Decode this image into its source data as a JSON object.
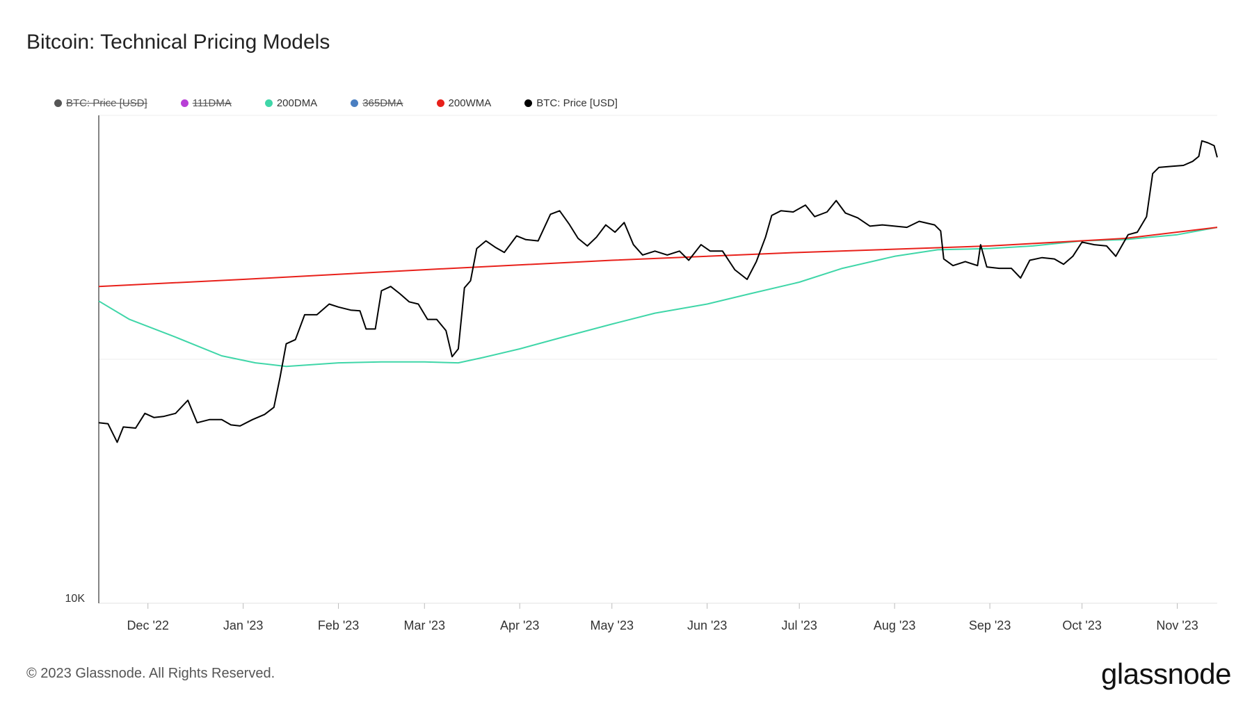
{
  "title": "Bitcoin: Technical Pricing Models",
  "footer": "© 2023 Glassnode. All Rights Reserved.",
  "brand": "glassnode",
  "legend": [
    {
      "label": "BTC: Price [USD]",
      "color": "#555555",
      "disabled": true
    },
    {
      "label": "111DMA",
      "color": "#b83fd6",
      "disabled": true
    },
    {
      "label": "200DMA",
      "color": "#3fd6a8",
      "disabled": false
    },
    {
      "label": "365DMA",
      "color": "#4a7fc1",
      "disabled": true
    },
    {
      "label": "200WMA",
      "color": "#e8201a",
      "disabled": false
    },
    {
      "label": "BTC: Price [USD]",
      "color": "#000000",
      "disabled": false
    }
  ],
  "chart_data": {
    "type": "line",
    "y_scale": "log",
    "y_tick_labels": [
      "10K"
    ],
    "x_tick_labels": [
      "Dec '22",
      "Jan '23",
      "Feb '23",
      "Mar '23",
      "Apr '23",
      "May '23",
      "Jun '23",
      "Jul '23",
      "Aug '23",
      "Sep '23",
      "Oct '23",
      "Nov '23"
    ],
    "x_range": [
      "2022-11-15",
      "2023-11-14"
    ],
    "y_range": [
      10000,
      40000
    ],
    "grid": true,
    "series": [
      {
        "name": "BTC: Price [USD]",
        "color": "#000000",
        "points": [
          [
            "2022-11-15",
            16700
          ],
          [
            "2022-11-18",
            16650
          ],
          [
            "2022-11-21",
            15800
          ],
          [
            "2022-11-23",
            16500
          ],
          [
            "2022-11-27",
            16450
          ],
          [
            "2022-11-30",
            17150
          ],
          [
            "2022-12-03",
            16950
          ],
          [
            "2022-12-06",
            17000
          ],
          [
            "2022-12-10",
            17150
          ],
          [
            "2022-12-14",
            17800
          ],
          [
            "2022-12-17",
            16700
          ],
          [
            "2022-12-21",
            16850
          ],
          [
            "2022-12-25",
            16850
          ],
          [
            "2022-12-28",
            16600
          ],
          [
            "2022-12-31",
            16550
          ],
          [
            "2023-01-04",
            16850
          ],
          [
            "2023-01-08",
            17100
          ],
          [
            "2023-01-11",
            17450
          ],
          [
            "2023-01-13",
            19000
          ],
          [
            "2023-01-15",
            20900
          ],
          [
            "2023-01-18",
            21150
          ],
          [
            "2023-01-21",
            22700
          ],
          [
            "2023-01-25",
            22700
          ],
          [
            "2023-01-29",
            23400
          ],
          [
            "2023-02-01",
            23200
          ],
          [
            "2023-02-05",
            23000
          ],
          [
            "2023-02-08",
            22950
          ],
          [
            "2023-02-10",
            21800
          ],
          [
            "2023-02-13",
            21800
          ],
          [
            "2023-02-15",
            24300
          ],
          [
            "2023-02-18",
            24600
          ],
          [
            "2023-02-21",
            24100
          ],
          [
            "2023-02-24",
            23550
          ],
          [
            "2023-02-27",
            23400
          ],
          [
            "2023-03-02",
            22400
          ],
          [
            "2023-03-05",
            22400
          ],
          [
            "2023-03-08",
            21700
          ],
          [
            "2023-03-10",
            20150
          ],
          [
            "2023-03-12",
            20600
          ],
          [
            "2023-03-14",
            24500
          ],
          [
            "2023-03-16",
            25000
          ],
          [
            "2023-03-18",
            27400
          ],
          [
            "2023-03-21",
            28000
          ],
          [
            "2023-03-24",
            27500
          ],
          [
            "2023-03-27",
            27100
          ],
          [
            "2023-03-31",
            28400
          ],
          [
            "2023-04-03",
            28100
          ],
          [
            "2023-04-07",
            28000
          ],
          [
            "2023-04-11",
            30200
          ],
          [
            "2023-04-14",
            30500
          ],
          [
            "2023-04-17",
            29400
          ],
          [
            "2023-04-20",
            28200
          ],
          [
            "2023-04-23",
            27600
          ],
          [
            "2023-04-26",
            28300
          ],
          [
            "2023-04-29",
            29300
          ],
          [
            "2023-05-02",
            28700
          ],
          [
            "2023-05-05",
            29500
          ],
          [
            "2023-05-08",
            27700
          ],
          [
            "2023-05-11",
            26900
          ],
          [
            "2023-05-15",
            27200
          ],
          [
            "2023-05-19",
            26900
          ],
          [
            "2023-05-23",
            27200
          ],
          [
            "2023-05-26",
            26500
          ],
          [
            "2023-05-30",
            27700
          ],
          [
            "2023-06-02",
            27200
          ],
          [
            "2023-06-06",
            27200
          ],
          [
            "2023-06-10",
            25800
          ],
          [
            "2023-06-14",
            25100
          ],
          [
            "2023-06-17",
            26400
          ],
          [
            "2023-06-20",
            28300
          ],
          [
            "2023-06-22",
            30100
          ],
          [
            "2023-06-25",
            30500
          ],
          [
            "2023-06-29",
            30400
          ],
          [
            "2023-07-03",
            31000
          ],
          [
            "2023-07-06",
            30000
          ],
          [
            "2023-07-10",
            30400
          ],
          [
            "2023-07-13",
            31400
          ],
          [
            "2023-07-16",
            30300
          ],
          [
            "2023-07-20",
            29900
          ],
          [
            "2023-07-24",
            29200
          ],
          [
            "2023-07-28",
            29300
          ],
          [
            "2023-08-01",
            29200
          ],
          [
            "2023-08-05",
            29100
          ],
          [
            "2023-08-09",
            29600
          ],
          [
            "2023-08-14",
            29300
          ],
          [
            "2023-08-16",
            28800
          ],
          [
            "2023-08-17",
            26600
          ],
          [
            "2023-08-20",
            26100
          ],
          [
            "2023-08-24",
            26400
          ],
          [
            "2023-08-28",
            26100
          ],
          [
            "2023-08-29",
            27700
          ],
          [
            "2023-08-31",
            26000
          ],
          [
            "2023-09-04",
            25900
          ],
          [
            "2023-09-08",
            25900
          ],
          [
            "2023-09-11",
            25200
          ],
          [
            "2023-09-14",
            26500
          ],
          [
            "2023-09-18",
            26700
          ],
          [
            "2023-09-22",
            26600
          ],
          [
            "2023-09-25",
            26200
          ],
          [
            "2023-09-28",
            26800
          ],
          [
            "2023-10-01",
            27900
          ],
          [
            "2023-10-05",
            27700
          ],
          [
            "2023-10-09",
            27600
          ],
          [
            "2023-10-12",
            26800
          ],
          [
            "2023-10-16",
            28500
          ],
          [
            "2023-10-19",
            28700
          ],
          [
            "2023-10-22",
            30000
          ],
          [
            "2023-10-24",
            33900
          ],
          [
            "2023-10-26",
            34500
          ],
          [
            "2023-10-30",
            34600
          ],
          [
            "2023-11-03",
            34700
          ],
          [
            "2023-11-06",
            35100
          ],
          [
            "2023-11-08",
            35600
          ],
          [
            "2023-11-09",
            37200
          ],
          [
            "2023-11-11",
            37000
          ],
          [
            "2023-11-13",
            36700
          ],
          [
            "2023-11-14",
            35500
          ]
        ]
      },
      {
        "name": "200DMA",
        "color": "#3fd6a8",
        "points": [
          [
            "2022-11-15",
            23600
          ],
          [
            "2022-11-25",
            22400
          ],
          [
            "2022-12-10",
            21300
          ],
          [
            "2022-12-25",
            20200
          ],
          [
            "2023-01-05",
            19800
          ],
          [
            "2023-01-15",
            19600
          ],
          [
            "2023-02-01",
            19800
          ],
          [
            "2023-02-15",
            19850
          ],
          [
            "2023-03-01",
            19850
          ],
          [
            "2023-03-12",
            19800
          ],
          [
            "2023-03-20",
            20100
          ],
          [
            "2023-04-01",
            20600
          ],
          [
            "2023-04-15",
            21300
          ],
          [
            "2023-05-01",
            22100
          ],
          [
            "2023-05-15",
            22800
          ],
          [
            "2023-06-01",
            23400
          ],
          [
            "2023-06-15",
            24100
          ],
          [
            "2023-07-01",
            24900
          ],
          [
            "2023-07-15",
            25900
          ],
          [
            "2023-08-01",
            26800
          ],
          [
            "2023-08-15",
            27300
          ],
          [
            "2023-09-01",
            27400
          ],
          [
            "2023-09-15",
            27600
          ],
          [
            "2023-10-01",
            28000
          ],
          [
            "2023-10-15",
            28100
          ],
          [
            "2023-11-01",
            28500
          ],
          [
            "2023-11-14",
            29100
          ]
        ]
      },
      {
        "name": "200WMA",
        "color": "#e8201a",
        "points": [
          [
            "2022-11-15",
            24600
          ],
          [
            "2023-01-01",
            25100
          ],
          [
            "2023-03-01",
            25800
          ],
          [
            "2023-05-01",
            26500
          ],
          [
            "2023-07-01",
            27100
          ],
          [
            "2023-09-01",
            27600
          ],
          [
            "2023-10-15",
            28200
          ],
          [
            "2023-11-14",
            29100
          ]
        ]
      }
    ]
  }
}
